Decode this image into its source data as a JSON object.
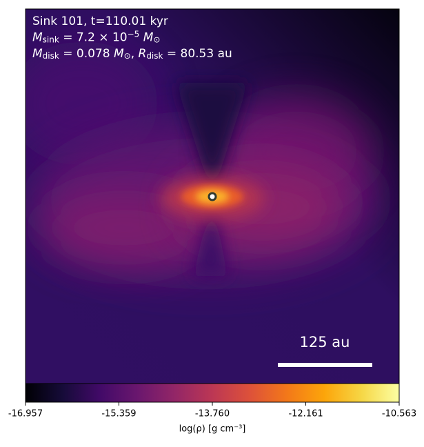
{
  "chart_data": {
    "type": "heatmap",
    "annotations": [
      [
        {
          "text": "Sink 101, t=110.01 kyr"
        }
      ],
      [
        {
          "text": "M",
          "style": "italic"
        },
        {
          "text": "sink",
          "style": "sub"
        },
        {
          "text": " = 7.2 × 10"
        },
        {
          "text": "−5",
          "style": "sup"
        },
        {
          "text": " M",
          "style": "italic"
        },
        {
          "text": "⊙",
          "style": "sub"
        }
      ],
      [
        {
          "text": "M",
          "style": "italic"
        },
        {
          "text": "disk",
          "style": "sub"
        },
        {
          "text": " = 0.078 "
        },
        {
          "text": "M",
          "style": "italic"
        },
        {
          "text": "⊙",
          "style": "sub"
        },
        {
          "text": ", "
        },
        {
          "text": "R",
          "style": "italic"
        },
        {
          "text": "disk",
          "style": "sub"
        },
        {
          "text": " = 80.53 au"
        }
      ]
    ],
    "scale_bar_label": "125 au",
    "colorbar": {
      "label": "log(ρ) [g cm⁻³]",
      "colormap": "inferno",
      "lim": [
        -16.957,
        -10.563
      ],
      "ticks": [
        -16.957,
        -15.359,
        {
          "value": -13.76,
          "label": "-13.760"
        },
        -12.161,
        -10.563
      ]
    }
  }
}
